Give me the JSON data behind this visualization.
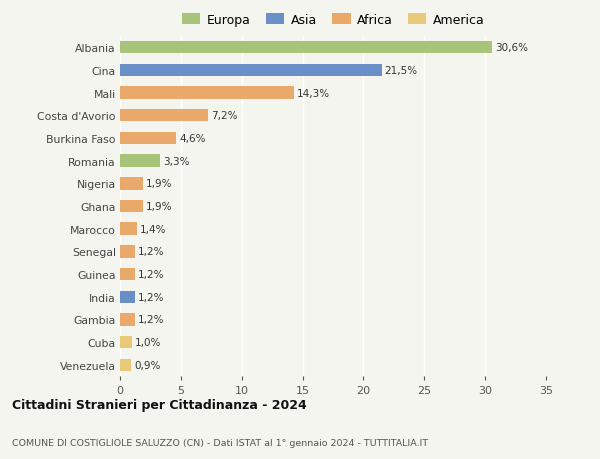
{
  "categories": [
    "Venezuela",
    "Cuba",
    "Gambia",
    "India",
    "Guinea",
    "Senegal",
    "Marocco",
    "Ghana",
    "Nigeria",
    "Romania",
    "Burkina Faso",
    "Costa d'Avorio",
    "Mali",
    "Cina",
    "Albania"
  ],
  "values": [
    0.9,
    1.0,
    1.2,
    1.2,
    1.2,
    1.2,
    1.4,
    1.9,
    1.9,
    3.3,
    4.6,
    7.2,
    14.3,
    21.5,
    30.6
  ],
  "labels": [
    "0,9%",
    "1,0%",
    "1,2%",
    "1,2%",
    "1,2%",
    "1,2%",
    "1,4%",
    "1,9%",
    "1,9%",
    "3,3%",
    "4,6%",
    "7,2%",
    "14,3%",
    "21,5%",
    "30,6%"
  ],
  "colors": [
    "#e8c97a",
    "#e8c97a",
    "#e8a96a",
    "#6a8fc8",
    "#e8a96a",
    "#e8a96a",
    "#e8a96a",
    "#e8a96a",
    "#e8a96a",
    "#a8c47a",
    "#e8a96a",
    "#e8a96a",
    "#e8a96a",
    "#6a8fc8",
    "#a8c47a"
  ],
  "legend_labels": [
    "Europa",
    "Asia",
    "Africa",
    "America"
  ],
  "legend_colors": [
    "#a8c47a",
    "#6a8fc8",
    "#e8a96a",
    "#e8c97a"
  ],
  "title": "Cittadini Stranieri per Cittadinanza - 2024",
  "subtitle": "COMUNE DI COSTIGLIOLE SALUZZO (CN) - Dati ISTAT al 1° gennaio 2024 - TUTTITALIA.IT",
  "xlim": [
    0,
    35
  ],
  "xticks": [
    0,
    5,
    10,
    15,
    20,
    25,
    30,
    35
  ],
  "bg_color": "#f5f5f0",
  "bar_height": 0.55
}
